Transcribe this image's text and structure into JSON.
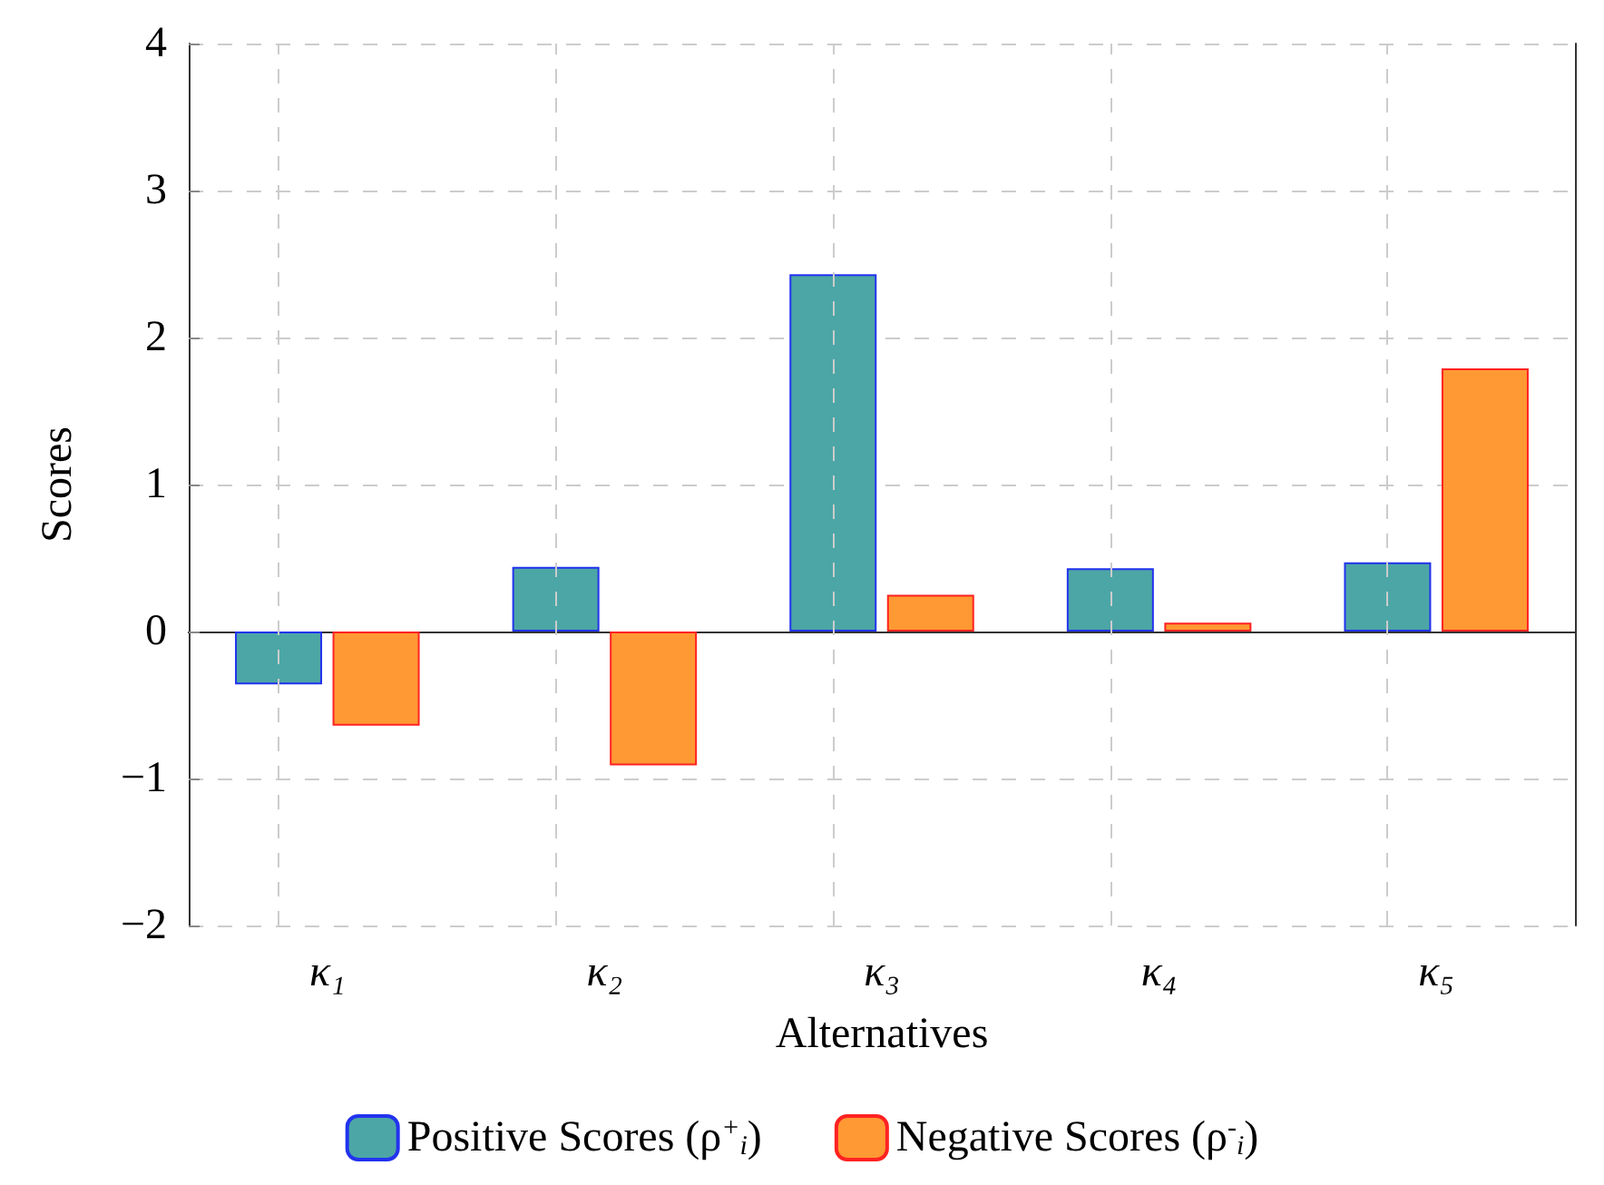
{
  "chart_data": {
    "type": "bar",
    "xlabel": "Alternatives",
    "ylabel": "Scores",
    "categories": [
      "κ₁",
      "κ₂",
      "κ₃",
      "κ₄",
      "κ₅"
    ],
    "series": [
      {
        "name": "Positive Scores (ρ$^{+}$$_{i}$)",
        "color": "#4ca6a6",
        "values": [
          -0.36,
          0.44,
          2.43,
          0.43,
          0.47
        ]
      },
      {
        "name": "Negative Scores (ρ$^{-}$$_{i}$)",
        "color": "#ff9933",
        "values": [
          -0.64,
          -0.91,
          0.25,
          0.06,
          1.79
        ]
      }
    ],
    "ylim": [
      -2,
      4
    ],
    "yticks": [
      -2,
      -1,
      0,
      1,
      2,
      3,
      4
    ],
    "grid": true,
    "legend": "bottom"
  }
}
